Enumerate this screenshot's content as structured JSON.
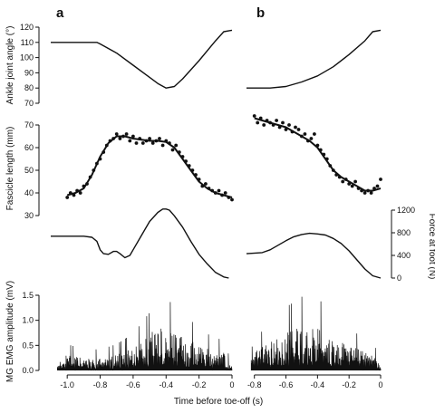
{
  "chart_data": {
    "type": "line",
    "panel_labels": [
      "a",
      "b"
    ],
    "x_axis": {
      "label": "Time before toe-off (s)",
      "a_ticks": [
        -1.0,
        -0.8,
        -0.6,
        -0.4,
        -0.2,
        0
      ],
      "a_tick_labels": [
        "-1.0",
        "-0.8",
        "-0.6",
        "-0.4",
        "-0.2",
        "0"
      ],
      "b_ticks": [
        -0.8,
        -0.6,
        -0.4,
        -0.2,
        0
      ],
      "b_tick_labels": [
        "-0.8",
        "-0.6",
        "-0.4",
        "-0.2",
        "0"
      ],
      "a_xlim": [
        -1.1,
        0
      ],
      "b_xlim": [
        -0.85,
        0
      ]
    },
    "ankle": {
      "ylabel": "Ankle joint angle (°)",
      "yticks": [
        70,
        80,
        90,
        100,
        110,
        120
      ],
      "ylim": [
        70,
        120
      ],
      "a": {
        "x": [
          -1.1,
          -0.82,
          -0.8,
          -0.7,
          -0.6,
          -0.5,
          -0.45,
          -0.4,
          -0.35,
          -0.3,
          -0.2,
          -0.1,
          -0.05,
          0
        ],
        "y": [
          110,
          110,
          109,
          103,
          95,
          87,
          83,
          80,
          81,
          86,
          98,
          111,
          117,
          118
        ]
      },
      "b": {
        "x": [
          -0.85,
          -0.7,
          -0.6,
          -0.5,
          -0.4,
          -0.3,
          -0.2,
          -0.1,
          -0.05,
          0
        ],
        "y": [
          80,
          80,
          81,
          84,
          88,
          94,
          102,
          111,
          117,
          118
        ]
      }
    },
    "fascicle": {
      "ylabel": "Fascicle length (mm)",
      "yticks": [
        30,
        40,
        50,
        60,
        70
      ],
      "ylim": [
        28,
        72
      ],
      "a_fit": {
        "x": [
          -1.0,
          -0.95,
          -0.9,
          -0.85,
          -0.8,
          -0.75,
          -0.7,
          -0.65,
          -0.6,
          -0.55,
          -0.5,
          -0.45,
          -0.4,
          -0.35,
          -0.3,
          -0.25,
          -0.2,
          -0.15,
          -0.1,
          -0.05,
          0
        ],
        "y": [
          39,
          40,
          42,
          48,
          56,
          62,
          65,
          65,
          64,
          63.5,
          63,
          63,
          62.5,
          60,
          55,
          50,
          45,
          42,
          40,
          39,
          38
        ]
      },
      "a_points": {
        "x": [
          -1.0,
          -0.98,
          -0.96,
          -0.94,
          -0.92,
          -0.9,
          -0.88,
          -0.86,
          -0.84,
          -0.82,
          -0.8,
          -0.78,
          -0.76,
          -0.74,
          -0.72,
          -0.7,
          -0.68,
          -0.66,
          -0.64,
          -0.62,
          -0.6,
          -0.58,
          -0.56,
          -0.54,
          -0.52,
          -0.5,
          -0.48,
          -0.46,
          -0.44,
          -0.42,
          -0.4,
          -0.38,
          -0.36,
          -0.34,
          -0.32,
          -0.3,
          -0.28,
          -0.26,
          -0.24,
          -0.22,
          -0.2,
          -0.18,
          -0.16,
          -0.14,
          -0.12,
          -0.1,
          -0.08,
          -0.06,
          -0.04,
          -0.02,
          0
        ],
        "y": [
          38,
          40,
          39,
          41,
          40,
          43,
          44,
          47,
          50,
          53,
          55,
          58,
          61,
          63,
          64,
          66,
          64,
          65,
          66,
          63,
          65,
          62,
          64,
          62,
          63,
          64,
          62,
          63,
          64,
          61,
          63,
          62,
          59,
          61,
          58,
          56,
          54,
          52,
          50,
          48,
          46,
          43,
          44,
          42,
          41,
          40,
          41,
          39,
          40,
          38,
          37
        ]
      },
      "b_fit": {
        "x": [
          -0.8,
          -0.75,
          -0.7,
          -0.65,
          -0.6,
          -0.55,
          -0.5,
          -0.45,
          -0.4,
          -0.35,
          -0.3,
          -0.25,
          -0.2,
          -0.15,
          -0.1,
          -0.05,
          0
        ],
        "y": [
          73,
          72,
          71,
          70,
          69,
          67,
          65,
          63,
          60,
          55,
          50,
          47,
          45,
          43,
          41,
          41,
          42
        ]
      },
      "b_points": {
        "x": [
          -0.8,
          -0.78,
          -0.76,
          -0.74,
          -0.72,
          -0.7,
          -0.68,
          -0.66,
          -0.64,
          -0.62,
          -0.6,
          -0.58,
          -0.56,
          -0.54,
          -0.52,
          -0.5,
          -0.48,
          -0.46,
          -0.44,
          -0.42,
          -0.4,
          -0.38,
          -0.36,
          -0.34,
          -0.32,
          -0.3,
          -0.28,
          -0.26,
          -0.24,
          -0.22,
          -0.2,
          -0.18,
          -0.16,
          -0.14,
          -0.12,
          -0.1,
          -0.08,
          -0.06,
          -0.04,
          -0.02,
          0
        ],
        "y": [
          74,
          71,
          73,
          70,
          72,
          71,
          70,
          72,
          69,
          71,
          68,
          70,
          67,
          69,
          68,
          65,
          66,
          63,
          64,
          66,
          61,
          59,
          57,
          55,
          52,
          50,
          48,
          47,
          45,
          46,
          44,
          43,
          45,
          42,
          41,
          40,
          41,
          40,
          42,
          43,
          46
        ]
      }
    },
    "force": {
      "ylabel": "Force at foot (N)",
      "yticks": [
        0,
        400,
        800,
        1200
      ],
      "ylim": [
        0,
        1200
      ],
      "a": {
        "x": [
          -1.1,
          -0.9,
          -0.85,
          -0.82,
          -0.8,
          -0.78,
          -0.75,
          -0.72,
          -0.7,
          -0.68,
          -0.65,
          -0.62,
          -0.6,
          -0.55,
          -0.5,
          -0.45,
          -0.42,
          -0.4,
          -0.38,
          -0.35,
          -0.3,
          -0.25,
          -0.2,
          -0.15,
          -0.1,
          -0.05,
          -0.02
        ],
        "y": [
          740,
          740,
          720,
          650,
          500,
          430,
          420,
          470,
          470,
          430,
          360,
          400,
          500,
          750,
          1000,
          1160,
          1220,
          1220,
          1200,
          1100,
          900,
          650,
          420,
          250,
          100,
          20,
          0
        ]
      },
      "b": {
        "x": [
          -0.85,
          -0.75,
          -0.7,
          -0.65,
          -0.6,
          -0.55,
          -0.5,
          -0.45,
          -0.4,
          -0.35,
          -0.3,
          -0.25,
          -0.2,
          -0.15,
          -0.1,
          -0.05,
          0
        ],
        "y": [
          430,
          450,
          500,
          580,
          660,
          730,
          770,
          790,
          780,
          760,
          700,
          610,
          480,
          320,
          160,
          40,
          0
        ]
      }
    },
    "emg": {
      "ylabel": "MG EMG amplitude (mV)",
      "yticks": [
        0,
        0.5,
        1.0,
        1.5
      ],
      "ytick_labels": [
        "0.0",
        "0.5",
        "1.0",
        "1.5"
      ],
      "ylim": [
        0,
        1.5
      ],
      "a_envelope": {
        "x": [
          -1.1,
          -1.0,
          -0.9,
          -0.8,
          -0.7,
          -0.6,
          -0.5,
          -0.45,
          -0.4,
          -0.35,
          -0.3,
          -0.2,
          -0.1,
          -0.05,
          0
        ],
        "y": [
          0.02,
          0.25,
          0.2,
          0.2,
          0.25,
          0.35,
          0.55,
          0.75,
          0.7,
          0.6,
          0.55,
          0.4,
          0.3,
          0.3,
          0.05
        ]
      },
      "b_envelope": {
        "x": [
          -0.85,
          -0.8,
          -0.7,
          -0.6,
          -0.5,
          -0.45,
          -0.4,
          -0.35,
          -0.3,
          -0.2,
          -0.1,
          -0.05,
          0
        ],
        "y": [
          0.05,
          0.3,
          0.45,
          0.6,
          0.7,
          0.75,
          0.7,
          0.6,
          0.5,
          0.4,
          0.3,
          0.3,
          0.05
        ]
      }
    }
  }
}
